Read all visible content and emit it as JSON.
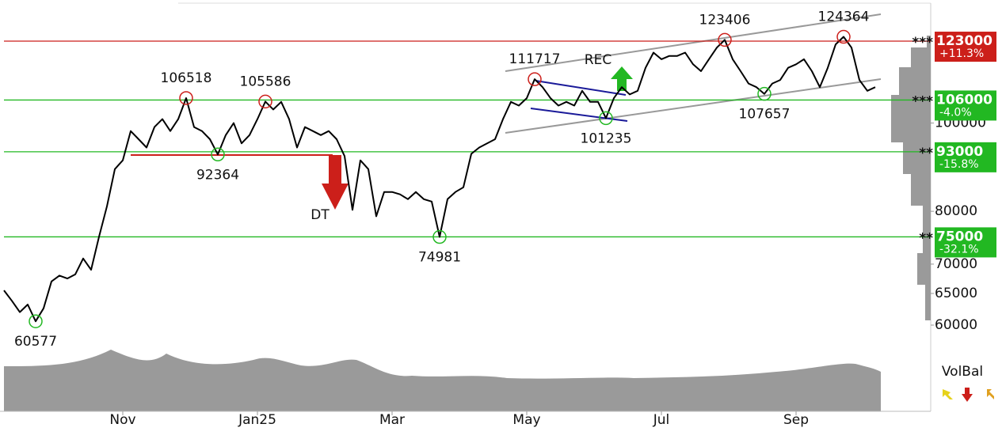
{
  "chart_data": {
    "type": "line",
    "categories": [
      null,
      null,
      null,
      null,
      null,
      null,
      null,
      null,
      null,
      null,
      null,
      null,
      null,
      null,
      null,
      "Nov",
      null,
      null,
      null,
      null,
      null,
      null,
      null,
      null,
      null,
      null,
      null,
      null,
      null,
      null,
      null,
      null,
      "Jan25",
      null,
      null,
      null,
      null,
      null,
      null,
      null,
      null,
      null,
      null,
      null,
      null,
      null,
      null,
      null,
      null,
      "Mar",
      null,
      null,
      null,
      null,
      null,
      null,
      null,
      null,
      null,
      null,
      null,
      null,
      null,
      null,
      null,
      null,
      "May",
      null,
      null,
      null,
      null,
      null,
      null,
      null,
      null,
      null,
      null,
      null,
      null,
      null,
      null,
      null,
      null,
      "Jul",
      null,
      null,
      null,
      null,
      null,
      null,
      null,
      null,
      null,
      null,
      null,
      null,
      null,
      null,
      null,
      null,
      "Sep",
      null,
      null,
      null,
      null,
      null,
      null,
      null,
      null,
      null,
      null
    ],
    "series": [
      {
        "color": "#000000",
        "values": [
          65500,
          63800,
          62000,
          63200,
          60577,
          62600,
          67000,
          68000,
          67500,
          68200,
          71000,
          69000,
          75000,
          81000,
          89000,
          91000,
          98000,
          96000,
          94000,
          99000,
          101000,
          98000,
          101000,
          106518,
          99000,
          98000,
          96000,
          92364,
          97000,
          100000,
          95000,
          97000,
          101000,
          105586,
          103500,
          105500,
          101000,
          94000,
          99000,
          98000,
          97000,
          98000,
          96000,
          92000,
          80300,
          91000,
          89000,
          79000,
          84000,
          84000,
          83500,
          82500,
          84000,
          82500,
          82000,
          74981,
          82500,
          84000,
          85000,
          92500,
          94000,
          95000,
          96000,
          101000,
          105500,
          104500,
          106500,
          111717,
          109500,
          106500,
          104500,
          105500,
          104500,
          108500,
          105500,
          105500,
          101235,
          106500,
          109500,
          107500,
          108500,
          115000,
          119500,
          117500,
          118500,
          118500,
          119500,
          116000,
          114000,
          117500,
          121000,
          123406,
          117500,
          114000,
          110500,
          109500,
          107657,
          110500,
          111500,
          115000,
          116000,
          117500,
          114000,
          109500,
          115000,
          122000,
          124364,
          121000,
          111500,
          108500,
          109500
        ]
      }
    ],
    "ylim": [
      48250,
      135130
    ],
    "yticks": [
      60000,
      65000,
      70000,
      80000,
      100000
    ],
    "log_scale": true,
    "extremes": [
      {
        "value": 60577,
        "kind": "low"
      },
      {
        "value": 106518,
        "kind": "high"
      },
      {
        "value": 92364,
        "kind": "low"
      },
      {
        "value": 105586,
        "kind": "high"
      },
      {
        "value": 74981,
        "kind": "low"
      },
      {
        "value": 111717,
        "kind": "high"
      },
      {
        "value": 101235,
        "kind": "low"
      },
      {
        "value": 123406,
        "kind": "high"
      },
      {
        "value": 107657,
        "kind": "low"
      },
      {
        "value": 124364,
        "kind": "high"
      }
    ],
    "levels": [
      {
        "value": 123000,
        "stars": "***",
        "change": "+11.3%",
        "color": "#cc1f1a"
      },
      {
        "value": 106000,
        "stars": "***",
        "change": "-4.0%",
        "color": "#22b822"
      },
      {
        "value": 93000,
        "stars": "**",
        "change": "-15.8%",
        "color": "#22b822"
      },
      {
        "value": 75000,
        "stars": "**",
        "change": "-32.1%",
        "color": "#22b822"
      }
    ],
    "annotations": [
      "DT",
      "REC"
    ],
    "indicator": "VolBal"
  }
}
